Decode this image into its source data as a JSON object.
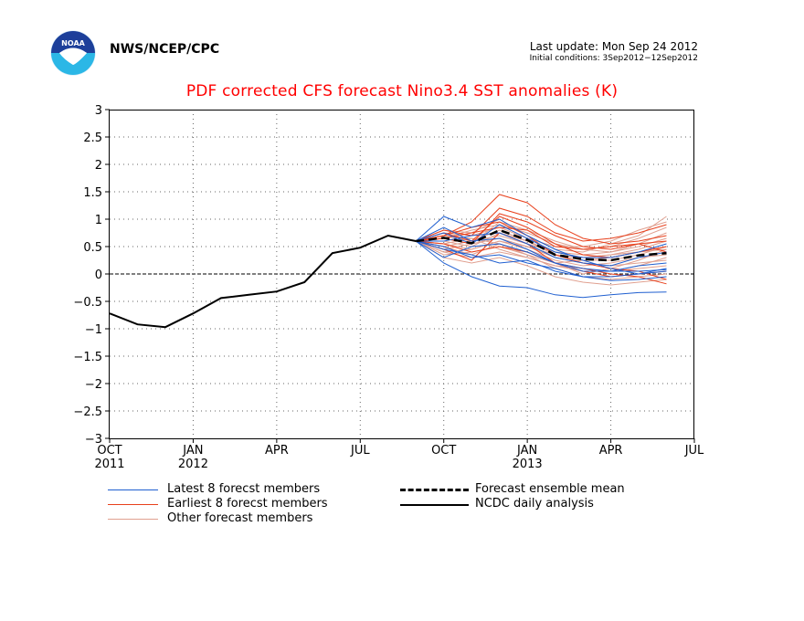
{
  "header": {
    "agency": "NWS/NCEP/CPC",
    "last_update": "Last update: Mon Sep 24 2012",
    "initial_conditions": "Initial conditions: 3Sep2012−12Sep2012"
  },
  "logo": {
    "name": "noaa-logo",
    "text": "NOAA"
  },
  "legend": {
    "latest": "Latest 8 forecst members",
    "earliest": "Earliest 8 forecst members",
    "other": "Other forecast members",
    "mean": "Forecast ensemble mean",
    "ncdc": "NCDC daily analysis"
  },
  "colors": {
    "latest": "#1f5fd0",
    "earliest": "#e8401c",
    "other": "#e0a090",
    "mean": "#000000",
    "ncdc": "#000000",
    "title": "#ff0000"
  },
  "chart_data": {
    "type": "line",
    "title": "PDF corrected CFS forecast Nino3.4 SST anomalies (K)",
    "ylim": [
      -3,
      3
    ],
    "yticks": [
      3,
      2.5,
      2,
      1.5,
      1,
      0.5,
      0,
      -0.5,
      -1,
      -1.5,
      -2,
      -2.5,
      -3
    ],
    "ytick_labels": [
      "3",
      "2.5",
      "2",
      "1.5",
      "1",
      "0.5",
      "0",
      "−0.5",
      "−1",
      "−1.5",
      "−2",
      "−2.5",
      "−3"
    ],
    "xlim": [
      "2011-10",
      "2013-07"
    ],
    "xticks": [
      {
        "date": "2011-10",
        "label": "OCT",
        "year": "2011"
      },
      {
        "date": "2012-01",
        "label": "JAN",
        "year": "2012"
      },
      {
        "date": "2012-04",
        "label": "APR",
        "year": ""
      },
      {
        "date": "2012-07",
        "label": "JUL",
        "year": ""
      },
      {
        "date": "2012-10",
        "label": "OCT",
        "year": ""
      },
      {
        "date": "2013-01",
        "label": "JAN",
        "year": "2013"
      },
      {
        "date": "2013-04",
        "label": "APR",
        "year": ""
      },
      {
        "date": "2013-07",
        "label": "JUL",
        "year": ""
      }
    ],
    "grid": true,
    "ncdc_analysis": {
      "x": [
        "2011-10-01",
        "2011-11-01",
        "2011-12-01",
        "2012-01-01",
        "2012-02-01",
        "2012-03-01",
        "2012-04-01",
        "2012-05-01",
        "2012-06-01",
        "2012-07-01",
        "2012-08-01",
        "2012-09-01"
      ],
      "y": [
        -0.72,
        -0.92,
        -0.97,
        -0.72,
        -0.44,
        -0.38,
        -0.32,
        -0.15,
        0.38,
        0.48,
        0.7,
        0.6
      ]
    },
    "ensemble_mean": {
      "x": [
        "2012-09-01",
        "2012-10-01",
        "2012-11-01",
        "2012-12-01",
        "2013-01-01",
        "2013-02-01",
        "2013-03-01",
        "2013-04-01",
        "2013-05-01",
        "2013-06-01"
      ],
      "y": [
        0.6,
        0.66,
        0.56,
        0.8,
        0.62,
        0.35,
        0.27,
        0.25,
        0.34,
        0.38
      ]
    },
    "member_x": [
      "2012-09-01",
      "2012-10-01",
      "2012-11-01",
      "2012-12-01",
      "2013-01-01",
      "2013-02-01",
      "2013-03-01",
      "2013-04-01",
      "2013-05-01",
      "2013-06-01"
    ],
    "latest_members": [
      [
        0.6,
        1.05,
        0.85,
        1.0,
        0.7,
        0.45,
        0.25,
        0.1,
        0.0,
        0.1
      ],
      [
        0.6,
        0.2,
        -0.05,
        -0.22,
        -0.25,
        -0.38,
        -0.43,
        -0.38,
        -0.34,
        -0.33
      ],
      [
        0.6,
        0.45,
        0.35,
        0.2,
        0.25,
        0.05,
        -0.05,
        -0.12,
        -0.1,
        -0.05
      ],
      [
        0.6,
        0.85,
        0.6,
        0.65,
        0.45,
        0.2,
        0.05,
        0.05,
        0.05,
        0.08
      ],
      [
        0.6,
        0.6,
        0.7,
        0.75,
        0.55,
        0.3,
        0.2,
        0.15,
        0.3,
        0.4
      ],
      [
        0.6,
        0.3,
        0.5,
        0.55,
        0.4,
        0.2,
        0.1,
        0.05,
        0.15,
        0.2
      ],
      [
        0.6,
        0.75,
        0.55,
        0.9,
        0.65,
        0.4,
        0.3,
        0.3,
        0.4,
        0.55
      ],
      [
        0.6,
        0.5,
        0.3,
        0.35,
        0.2,
        0.1,
        -0.05,
        -0.05,
        0.0,
        0.05
      ]
    ],
    "earliest_members": [
      [
        0.6,
        0.7,
        0.95,
        1.45,
        1.3,
        0.9,
        0.65,
        0.55,
        0.6,
        0.7
      ],
      [
        0.6,
        0.65,
        0.55,
        1.1,
        0.95,
        0.7,
        0.5,
        0.45,
        0.55,
        0.6
      ],
      [
        0.6,
        0.8,
        0.7,
        1.2,
        1.05,
        0.75,
        0.6,
        0.65,
        0.75,
        0.9
      ],
      [
        0.6,
        0.55,
        0.4,
        0.5,
        0.4,
        0.2,
        0.05,
        -0.05,
        0.0,
        0.05
      ],
      [
        0.6,
        0.7,
        0.85,
        0.95,
        0.7,
        0.35,
        0.2,
        0.1,
        0.05,
        -0.1
      ],
      [
        0.6,
        0.75,
        0.6,
        1.05,
        0.85,
        0.55,
        0.35,
        0.3,
        0.4,
        0.5
      ],
      [
        0.6,
        0.45,
        0.25,
        0.75,
        0.55,
        0.2,
        0.1,
        0.0,
        -0.05,
        -0.18
      ],
      [
        0.6,
        0.65,
        0.75,
        0.85,
        0.8,
        0.5,
        0.45,
        0.5,
        0.55,
        0.4
      ]
    ],
    "other_members": [
      [
        0.6,
        0.5,
        0.6,
        0.7,
        0.55,
        0.4,
        0.3,
        0.35,
        0.45,
        0.6
      ],
      [
        0.6,
        0.55,
        0.45,
        0.6,
        0.45,
        0.25,
        0.15,
        0.2,
        0.3,
        0.35
      ],
      [
        0.6,
        0.4,
        0.3,
        0.4,
        0.3,
        0.15,
        0.05,
        0.05,
        0.1,
        0.15
      ],
      [
        0.6,
        0.65,
        0.8,
        0.9,
        0.75,
        0.55,
        0.45,
        0.5,
        0.65,
        0.85
      ],
      [
        0.6,
        0.7,
        0.65,
        0.55,
        0.35,
        0.2,
        0.25,
        0.3,
        0.4,
        0.5
      ],
      [
        0.6,
        0.35,
        0.4,
        0.5,
        0.35,
        0.1,
        -0.05,
        -0.1,
        -0.05,
        0.0
      ],
      [
        0.6,
        0.8,
        0.75,
        1.0,
        0.7,
        0.45,
        0.4,
        0.55,
        0.7,
        1.05
      ],
      [
        0.6,
        0.45,
        0.55,
        0.65,
        0.5,
        0.3,
        0.2,
        0.15,
        0.2,
        0.25
      ],
      [
        0.6,
        0.6,
        0.5,
        0.75,
        0.6,
        0.4,
        0.35,
        0.4,
        0.55,
        0.75
      ],
      [
        0.6,
        0.3,
        0.2,
        0.3,
        0.15,
        -0.05,
        -0.15,
        -0.2,
        -0.15,
        -0.1
      ],
      [
        0.6,
        0.75,
        0.7,
        0.85,
        0.65,
        0.5,
        0.5,
        0.6,
        0.8,
        0.95
      ],
      [
        0.6,
        0.55,
        0.65,
        0.45,
        0.3,
        0.15,
        0.1,
        0.05,
        0.15,
        0.3
      ],
      [
        0.6,
        0.65,
        0.55,
        0.95,
        0.8,
        0.6,
        0.45,
        0.4,
        0.5,
        0.65
      ],
      [
        0.6,
        0.5,
        0.35,
        0.55,
        0.4,
        0.2,
        0.0,
        0.1,
        0.25,
        0.45
      ],
      [
        0.6,
        0.7,
        0.6,
        0.8,
        0.6,
        0.35,
        0.25,
        0.25,
        0.35,
        0.5
      ],
      [
        0.6,
        0.4,
        0.45,
        0.6,
        0.5,
        0.35,
        0.3,
        0.35,
        0.4,
        0.45
      ]
    ]
  }
}
